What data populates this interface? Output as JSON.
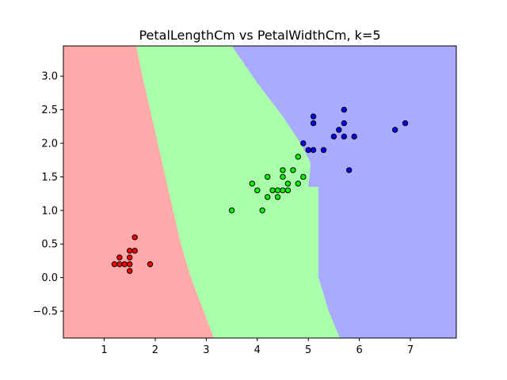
{
  "chart_data": {
    "type": "scatter",
    "title": "PetalLengthCm vs PetalWidthCm, k=5",
    "xlabel": "",
    "ylabel": "",
    "xlim": [
      0.2,
      7.9
    ],
    "ylim": [
      -0.9,
      3.45
    ],
    "xticks": [
      1,
      2,
      3,
      4,
      5,
      6,
      7
    ],
    "yticks": [
      -0.5,
      0.0,
      0.5,
      1.0,
      1.5,
      2.0,
      2.5,
      3.0
    ],
    "xtick_labels": [
      "1",
      "2",
      "3",
      "4",
      "5",
      "6",
      "7"
    ],
    "ytick_labels": [
      "−0.5",
      "0.0",
      "0.5",
      "1.0",
      "1.5",
      "2.0",
      "2.5",
      "3.0"
    ],
    "grid": false,
    "legend": "none",
    "regions": [
      {
        "class": 0,
        "color": "#ffaaaa"
      },
      {
        "class": 1,
        "color": "#aaffaa"
      },
      {
        "class": 2,
        "color": "#aaaaff"
      }
    ],
    "series": [
      {
        "color": "#ff0000",
        "points": [
          [
            1.2,
            0.2
          ],
          [
            1.3,
            0.2
          ],
          [
            1.3,
            0.3
          ],
          [
            1.4,
            0.2
          ],
          [
            1.4,
            0.2
          ],
          [
            1.5,
            0.1
          ],
          [
            1.5,
            0.2
          ],
          [
            1.5,
            0.3
          ],
          [
            1.5,
            0.4
          ],
          [
            1.6,
            0.4
          ],
          [
            1.6,
            0.6
          ],
          [
            1.9,
            0.2
          ]
        ]
      },
      {
        "color": "#00ff00",
        "points": [
          [
            3.5,
            1.0
          ],
          [
            3.9,
            1.4
          ],
          [
            4.0,
            1.3
          ],
          [
            4.1,
            1.0
          ],
          [
            4.2,
            1.2
          ],
          [
            4.2,
            1.5
          ],
          [
            4.3,
            1.3
          ],
          [
            4.4,
            1.3
          ],
          [
            4.4,
            1.2
          ],
          [
            4.5,
            1.3
          ],
          [
            4.5,
            1.5
          ],
          [
            4.5,
            1.6
          ],
          [
            4.6,
            1.3
          ],
          [
            4.6,
            1.4
          ],
          [
            4.7,
            1.6
          ],
          [
            4.8,
            1.4
          ],
          [
            4.8,
            1.8
          ],
          [
            4.9,
            1.5
          ]
        ]
      },
      {
        "color": "#0000ff",
        "points": [
          [
            4.9,
            2.0
          ],
          [
            5.0,
            1.9
          ],
          [
            5.1,
            1.9
          ],
          [
            5.1,
            2.3
          ],
          [
            5.1,
            2.4
          ],
          [
            5.3,
            1.9
          ],
          [
            5.5,
            2.1
          ],
          [
            5.6,
            2.2
          ],
          [
            5.7,
            2.1
          ],
          [
            5.7,
            2.3
          ],
          [
            5.7,
            2.5
          ],
          [
            5.8,
            1.6
          ],
          [
            5.9,
            2.1
          ],
          [
            6.7,
            2.2
          ],
          [
            6.9,
            2.3
          ]
        ]
      }
    ]
  }
}
